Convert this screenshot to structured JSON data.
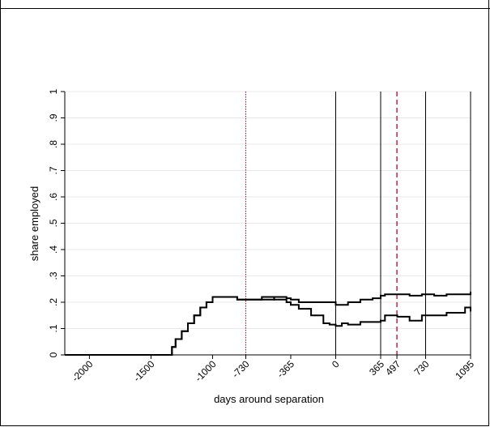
{
  "chart_data": {
    "type": "line",
    "title": "",
    "xlabel": "days around separation",
    "ylabel": "share employed",
    "xlim": [
      -2200,
      1095
    ],
    "ylim": [
      0,
      1
    ],
    "grid": true,
    "legend": "none",
    "x_ticks": [
      "-2000",
      "-1500",
      "-1000",
      "-730",
      "-365",
      "0",
      "365",
      "497",
      "730",
      "1095"
    ],
    "y_ticks": [
      "0",
      ".1",
      ".2",
      ".3",
      ".4",
      ".5",
      ".6",
      ".7",
      ".8",
      ".9",
      "1"
    ],
    "reference_lines": [
      {
        "x": -730,
        "style": "dotted",
        "color": "#c0002a"
      },
      {
        "x": 0,
        "style": "solid",
        "color": "#000000"
      },
      {
        "x": 365,
        "style": "solid",
        "color": "#000000"
      },
      {
        "x": 497,
        "style": "dashed",
        "color": "#c0002a"
      },
      {
        "x": 730,
        "style": "solid",
        "color": "#000000"
      },
      {
        "x": 1095,
        "style": "solid",
        "color": "#000000"
      }
    ],
    "series": [
      {
        "x": [
          -2200,
          -1500,
          -1350,
          -1330,
          -1300,
          -1250,
          -1200,
          -1150,
          -1100,
          -1050,
          -1000,
          -900,
          -800,
          -730,
          -600,
          -500,
          -400,
          -365,
          -300,
          -200,
          -100,
          0,
          100,
          200,
          300,
          365,
          400,
          500,
          600,
          700,
          730,
          800,
          900,
          1000,
          1095
        ],
        "values": [
          0,
          0,
          0,
          0.03,
          0.06,
          0.09,
          0.12,
          0.15,
          0.18,
          0.2,
          0.22,
          0.22,
          0.21,
          0.21,
          0.21,
          0.22,
          0.215,
          0.21,
          0.2,
          0.2,
          0.2,
          0.19,
          0.2,
          0.21,
          0.215,
          0.225,
          0.23,
          0.23,
          0.225,
          0.23,
          0.23,
          0.225,
          0.23,
          0.23,
          0.24
        ]
      },
      {
        "x": [
          -2200,
          -1500,
          -1350,
          -1330,
          -1300,
          -1250,
          -1200,
          -1150,
          -1100,
          -1050,
          -1000,
          -900,
          -800,
          -730,
          -600,
          -500,
          -400,
          -365,
          -300,
          -200,
          -100,
          -50,
          0,
          50,
          100,
          200,
          300,
          365,
          400,
          500,
          600,
          700,
          730,
          800,
          900,
          1000,
          1050,
          1095
        ],
        "values": [
          0,
          0,
          0,
          0.03,
          0.06,
          0.09,
          0.12,
          0.15,
          0.18,
          0.2,
          0.22,
          0.22,
          0.21,
          0.21,
          0.22,
          0.21,
          0.2,
          0.19,
          0.175,
          0.15,
          0.12,
          0.115,
          0.11,
          0.12,
          0.115,
          0.125,
          0.125,
          0.13,
          0.15,
          0.145,
          0.13,
          0.15,
          0.15,
          0.15,
          0.16,
          0.16,
          0.18,
          0.165
        ]
      }
    ]
  }
}
